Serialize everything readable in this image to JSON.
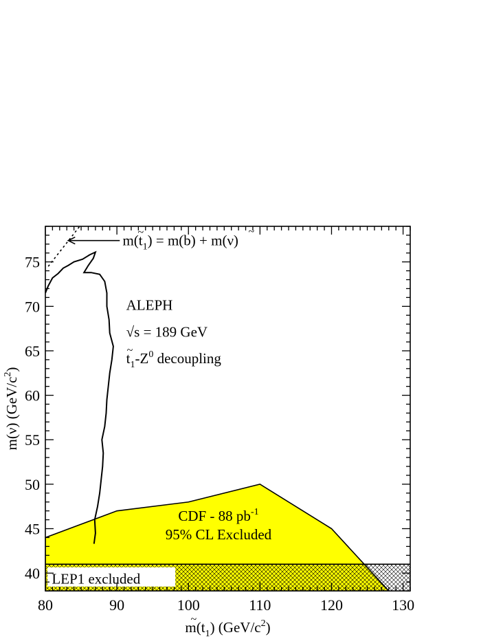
{
  "chart_data": {
    "type": "line",
    "xlabel": {
      "main": "m(t",
      "sub": "1",
      "mid": ") (GeV/c",
      "sup": "2",
      "end": ")"
    },
    "ylabel": {
      "main": "m(ν) (GeV/c",
      "sup": "2",
      "end": ")"
    },
    "xlim": [
      80,
      131
    ],
    "ylim": [
      38,
      79
    ],
    "x_ticks": [
      80,
      90,
      100,
      110,
      120,
      130
    ],
    "y_ticks": [
      40,
      45,
      50,
      55,
      60,
      65,
      70,
      75
    ],
    "grid": false,
    "series": [
      {
        "values": [
          [
            86.8,
            43.3
          ],
          [
            87.0,
            44.5
          ],
          [
            86.9,
            46.0
          ],
          [
            87.3,
            47.5
          ],
          [
            87.6,
            49.0
          ],
          [
            87.8,
            50.5
          ],
          [
            88.0,
            52.0
          ],
          [
            88.1,
            53.5
          ],
          [
            87.9,
            55.0
          ],
          [
            88.3,
            56.5
          ],
          [
            88.5,
            58.0
          ],
          [
            88.6,
            59.5
          ],
          [
            88.8,
            61.0
          ],
          [
            89.0,
            62.5
          ],
          [
            89.3,
            64.0
          ],
          [
            89.5,
            65.5
          ],
          [
            89.0,
            67.0
          ],
          [
            88.9,
            68.5
          ],
          [
            88.6,
            70.0
          ],
          [
            88.6,
            71.5
          ],
          [
            88.3,
            72.8
          ],
          [
            87.6,
            73.6
          ],
          [
            86.4,
            73.8
          ],
          [
            85.4,
            73.8
          ],
          [
            86.0,
            74.6
          ],
          [
            86.7,
            75.4
          ],
          [
            87.0,
            76.1
          ],
          [
            86.2,
            75.8
          ],
          [
            85.2,
            75.3
          ],
          [
            84.0,
            75.0
          ],
          [
            83.2,
            74.6
          ],
          [
            82.5,
            74.3
          ],
          [
            81.8,
            73.7
          ],
          [
            81.0,
            73.2
          ],
          [
            80.4,
            72.3
          ],
          [
            80.0,
            71.5
          ]
        ]
      },
      {
        "style": "dotted",
        "values": [
          [
            80.4,
            74.5
          ],
          [
            84.8,
            79.0
          ]
        ]
      }
    ],
    "regions": {
      "cdf_excluded": {
        "color": "#ffff00",
        "label_line1": "CDF - 88 pb",
        "label_sup": "-1",
        "label_line2": "95% CL Excluded",
        "boundary": [
          [
            80,
            44
          ],
          [
            90,
            47
          ],
          [
            100,
            48
          ],
          [
            110,
            50
          ],
          [
            120,
            45
          ],
          [
            128,
            38
          ]
        ]
      },
      "lep1_excluded": {
        "label": "LEP1 excluded",
        "ymax": 41,
        "hatch_color": "#000000"
      }
    },
    "annotations": {
      "relation": {
        "part1": "m(t",
        "sub": "1",
        "part2": ") = m(b) + m(ν)"
      },
      "experiment": "ALEPH",
      "energy": "√s = 189 GeV",
      "decoupling": {
        "t": "t",
        "sub": "1",
        "z": "-Z",
        "sup": "0",
        "rest": " decoupling"
      }
    }
  }
}
